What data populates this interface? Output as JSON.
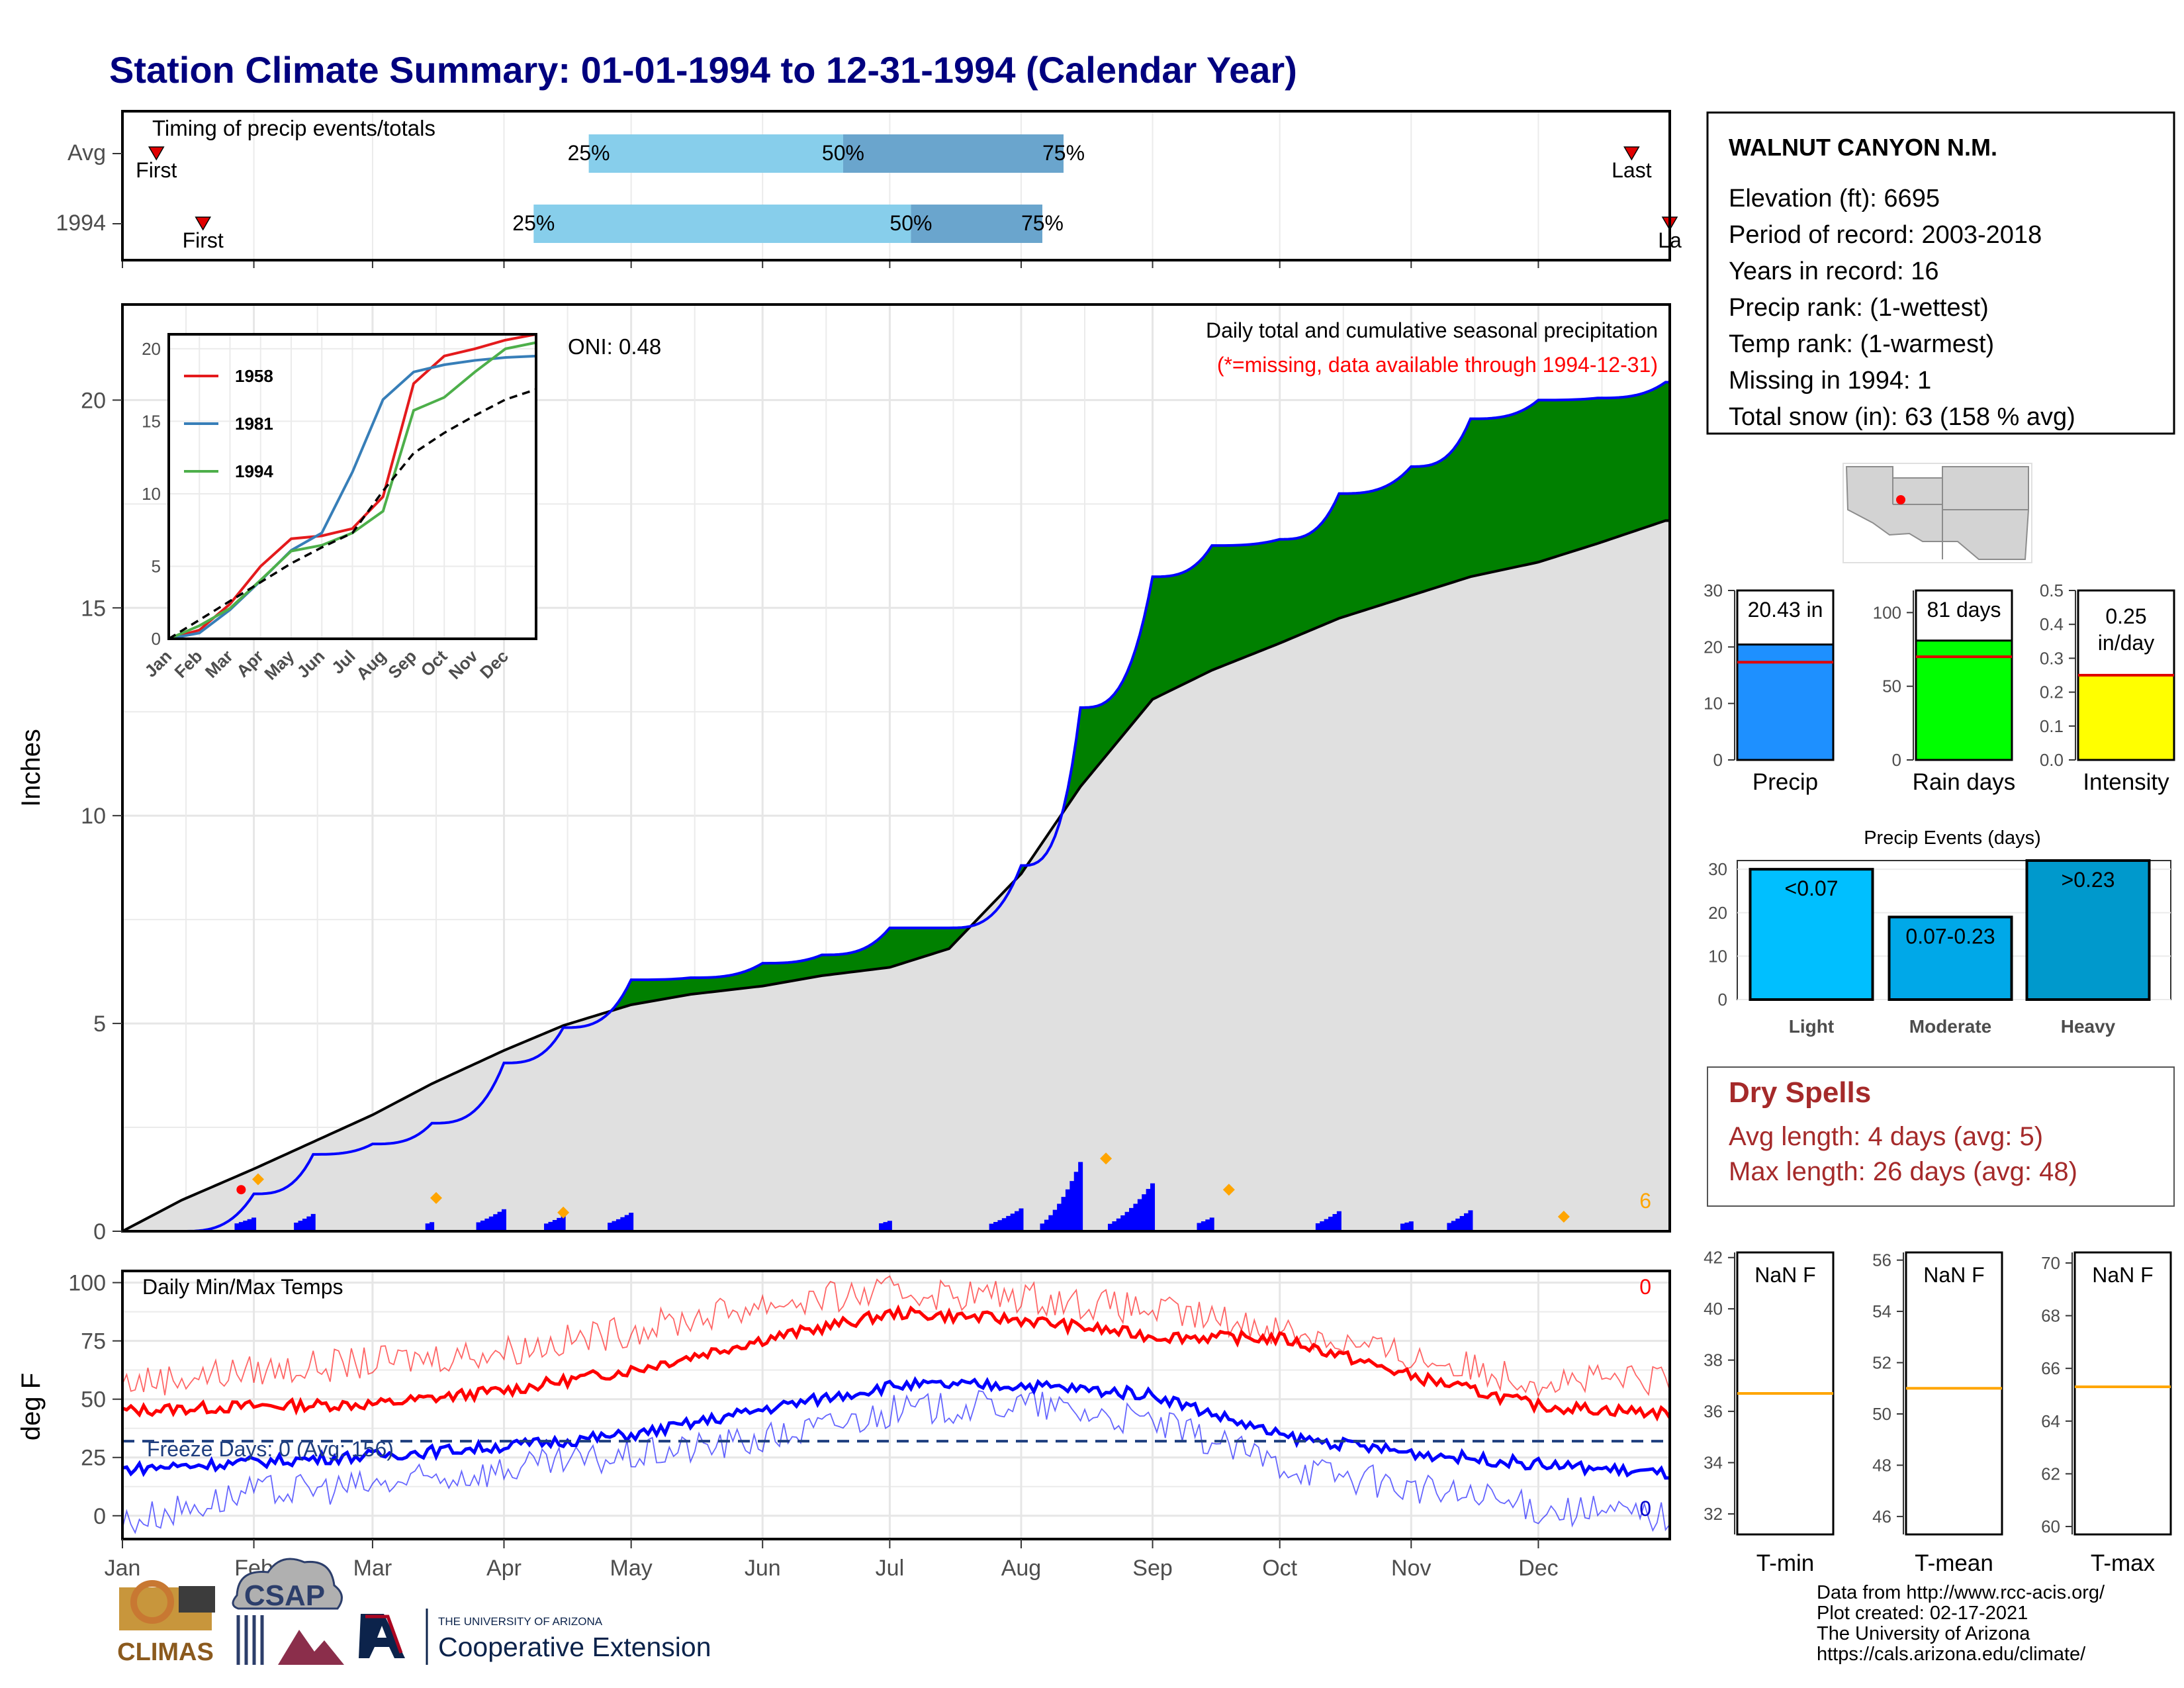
{
  "header": {
    "title": "Station Climate Summary: 01-01-1994 to 12-31-1994 (Calendar Year)"
  },
  "timing_panel": {
    "label": "Timing of precip events/totals",
    "rows": [
      {
        "label": "Avg",
        "first_day": 8,
        "p25_day": 110,
        "p50_day": 170,
        "p75_day": 222,
        "last_day": 356,
        "p25_label": "25%",
        "p50_label": "50%",
        "p75_label": "75%",
        "first_label": "First",
        "last_label": "Last"
      },
      {
        "label": "1994",
        "first_day": 19,
        "p25_day": 97,
        "p50_day": 186,
        "p75_day": 217,
        "last_day": 365,
        "p25_label": "25%",
        "p50_label": "50%",
        "p75_label": "75%",
        "first_label": "First",
        "last_label": "La"
      }
    ],
    "colors": {
      "light": "#87ceeb",
      "dark": "#6aa5cd",
      "marker": "#e00000"
    }
  },
  "precip_panel": {
    "ylabel": "Inches",
    "yticks": [
      "0",
      "5",
      "10",
      "15",
      "20"
    ],
    "ylim": [
      0,
      22.3
    ],
    "title": "Daily total and cumulative seasonal precipitation",
    "subtitle": "(*=missing, data available through 1994-12-31)",
    "oni_label": "ONI: 0.48",
    "missing_count": "6",
    "colors": {
      "above": "#008000",
      "below": "#7f4f00",
      "normal": "#e0e0e0",
      "obs": "#0000ff",
      "event_marker": "#ffa500",
      "missing_text": "#ffa500",
      "subtitle": "#ff0000"
    }
  },
  "inset": {
    "yticks": [
      "0",
      "5",
      "10",
      "15",
      "20"
    ],
    "xticks": [
      "Jan",
      "Feb",
      "Mar",
      "Apr",
      "May",
      "Jun",
      "Jul",
      "Aug",
      "Sep",
      "Oct",
      "Nov",
      "Dec"
    ],
    "legend": [
      {
        "name": "1958",
        "color": "#e41a1c"
      },
      {
        "name": "1981",
        "color": "#377eb8"
      },
      {
        "name": "1994",
        "color": "#4daf4a"
      }
    ]
  },
  "temp_panel": {
    "ylabel": "deg F",
    "yticks": [
      "0",
      "25",
      "50",
      "75",
      "100"
    ],
    "title": "Daily Min/Max Temps",
    "freeze_label": "Freeze Days: 0 (Avg: 156)",
    "max_count": "0",
    "min_count": "0",
    "freezing_line": 32,
    "colors": {
      "max": "#ff0000",
      "min": "#0000ff",
      "freeze": "#1f3f7f"
    }
  },
  "months": [
    "Jan",
    "Feb",
    "Mar",
    "Apr",
    "May",
    "Jun",
    "Jul",
    "Aug",
    "Sep",
    "Oct",
    "Nov",
    "Dec"
  ],
  "station": {
    "name": "WALNUT CANYON N.M.",
    "lines": [
      "Elevation (ft): 6695",
      "Period of record: 2003-2018",
      "Years in record: 16",
      "Precip rank:  (1-wettest)",
      "Temp rank:  (1-warmest)",
      "Missing in 1994: 1",
      "Total snow (in): 63 (158 % avg)"
    ]
  },
  "summary_bars": [
    {
      "label": "Precip",
      "value_label": "20.43 in",
      "value": 20.43,
      "avg": 17.3,
      "ymax": 30,
      "ticks": [
        "0",
        "10",
        "20",
        "30"
      ],
      "color": "#1e90ff"
    },
    {
      "label": "Rain days",
      "value_label": "81 days",
      "value": 81,
      "avg": 70,
      "ymax": 115,
      "ticks": [
        "0",
        "50",
        "100"
      ],
      "color": "#00ff00"
    },
    {
      "label": "Intensity",
      "value_label": "0.25 in/day",
      "value": 0.25,
      "avg": 0.25,
      "ymax": 0.5,
      "ticks": [
        "0.0",
        "0.1",
        "0.2",
        "0.3",
        "0.4",
        "0.5"
      ],
      "color": "#ffff00"
    }
  ],
  "precip_events": {
    "title": "Precip Events (days)",
    "ticks": [
      "0",
      "10",
      "20",
      "30"
    ],
    "ymax": 32,
    "bars": [
      {
        "category": "Light",
        "bar_label": "<0.07",
        "value": 30,
        "color": "#00bfff"
      },
      {
        "category": "Moderate",
        "bar_label": "0.07-0.23",
        "value": 19,
        "color": "#00a8e8"
      },
      {
        "category": "Heavy",
        "bar_label": ">0.23",
        "value": 32,
        "color": "#0099cc"
      }
    ]
  },
  "dry_spells": {
    "title": "Dry Spells",
    "avg_length": "Avg length: 4 days (avg: 5)",
    "max_length": "Max length: 26 days (avg: 48)",
    "color": "#a52a2a"
  },
  "temp_boxes": [
    {
      "label": "T-min",
      "value_label": "NaN F",
      "ticks": [
        "32",
        "34",
        "36",
        "38",
        "40",
        "42"
      ],
      "ymin": 31.2,
      "ymax": 42.2,
      "avg": 36.7
    },
    {
      "label": "T-mean",
      "value_label": "NaN F",
      "ticks": [
        "46",
        "48",
        "50",
        "52",
        "54",
        "56"
      ],
      "ymin": 45.3,
      "ymax": 56.3,
      "avg": 51.0
    },
    {
      "label": "T-max",
      "value_label": "NaN F",
      "ticks": [
        "60",
        "62",
        "64",
        "66",
        "68",
        "70"
      ],
      "ymin": 59.7,
      "ymax": 70.4,
      "avg": 65.3
    }
  ],
  "footer": {
    "lines": [
      "Data from http://www.rcc-acis.org/",
      "Plot created: 02-17-2021",
      "The University of Arizona",
      "https://cals.arizona.edu/climate/"
    ],
    "logo_climas": "CLIMAS",
    "logo_csap": "CSAP",
    "logo_ua_small": "THE UNIVERSITY OF ARIZONA",
    "logo_ua_big": "Cooperative Extension"
  },
  "chart_data": [
    {
      "type": "area",
      "title": "Daily total and cumulative seasonal precipitation",
      "ylabel": "Inches",
      "ylim": [
        0,
        22.3
      ],
      "x": [
        "01-01",
        "01-15",
        "02-01",
        "02-15",
        "03-01",
        "03-15",
        "04-01",
        "04-15",
        "05-01",
        "05-15",
        "06-01",
        "06-15",
        "07-01",
        "07-15",
        "08-01",
        "08-15",
        "09-01",
        "09-15",
        "10-01",
        "10-15",
        "11-01",
        "11-15",
        "12-01",
        "12-15",
        "12-31"
      ],
      "series": [
        {
          "name": "1994",
          "values": [
            0.0,
            0.0,
            0.9,
            1.85,
            2.1,
            2.6,
            4.05,
            4.9,
            6.05,
            6.1,
            6.45,
            6.65,
            7.3,
            7.3,
            8.8,
            12.6,
            15.75,
            16.5,
            16.65,
            17.75,
            18.4,
            19.55,
            20.0,
            20.05,
            20.43
          ]
        },
        {
          "name": "Avg",
          "values": [
            0.0,
            0.75,
            1.5,
            2.15,
            2.8,
            3.55,
            4.35,
            4.95,
            5.45,
            5.7,
            5.9,
            6.15,
            6.35,
            6.8,
            8.6,
            10.7,
            12.8,
            13.5,
            14.15,
            14.75,
            15.3,
            15.75,
            16.1,
            16.55,
            17.1
          ]
        }
      ]
    },
    {
      "type": "line",
      "title": "",
      "ylim": [
        0,
        21
      ],
      "x": [
        "Jan",
        "Feb",
        "Mar",
        "Apr",
        "May",
        "Jun",
        "Jul",
        "Aug",
        "Sep",
        "Oct",
        "Nov",
        "Dec",
        "End"
      ],
      "series": [
        {
          "name": "1958",
          "values": [
            0.0,
            0.6,
            2.4,
            5.0,
            6.9,
            7.1,
            7.6,
            9.8,
            17.6,
            19.5,
            20.0,
            20.6,
            21.0
          ]
        },
        {
          "name": "1981",
          "values": [
            0.0,
            0.4,
            2.0,
            4.0,
            6.1,
            7.3,
            11.5,
            16.5,
            18.4,
            18.9,
            19.2,
            19.4,
            19.5
          ]
        },
        {
          "name": "1994",
          "values": [
            0.0,
            0.9,
            2.1,
            4.05,
            6.05,
            6.45,
            7.3,
            8.8,
            15.75,
            16.65,
            18.4,
            20.0,
            20.43
          ]
        },
        {
          "name": "",
          "values": [
            0.0,
            1.3,
            2.6,
            3.9,
            5.2,
            6.3,
            7.3,
            10.2,
            12.8,
            14.2,
            15.4,
            16.5,
            17.2
          ]
        }
      ]
    },
    {
      "type": "line",
      "title": "Daily Min/Max Temps",
      "ylabel": "deg F",
      "ylim": [
        -10,
        105
      ],
      "x": [
        "Jan",
        "Feb",
        "Mar",
        "Apr",
        "May",
        "Jun",
        "Jul",
        "Aug",
        "Sep",
        "Oct",
        "Nov",
        "Dec",
        "End"
      ],
      "series": [
        {
          "name": "",
          "values": [
            45,
            47,
            48,
            54,
            63,
            76,
            87,
            84,
            77,
            76,
            60,
            47,
            44
          ]
        },
        {
          "name": "",
          "values": [
            20,
            23,
            26,
            30,
            35,
            46,
            56,
            56,
            52,
            34,
            27,
            22,
            18
          ]
        },
        {
          "name": "",
          "values": [
            57,
            62,
            66,
            71,
            80,
            91,
            96,
            94,
            88,
            80,
            68,
            58,
            58
          ]
        },
        {
          "name": "",
          "values": [
            -3,
            10,
            13,
            20,
            26,
            33,
            45,
            48,
            40,
            22,
            12,
            3,
            0
          ]
        }
      ]
    },
    {
      "type": "bar",
      "title": "Precip Events (days)",
      "categories": [
        "Light",
        "Moderate",
        "Heavy"
      ],
      "values": [
        30,
        19,
        32
      ]
    },
    {
      "type": "bar",
      "title": "",
      "categories": [
        "Precip",
        "Rain days",
        "Intensity"
      ],
      "values": [
        20.43,
        81,
        0.25
      ]
    }
  ]
}
